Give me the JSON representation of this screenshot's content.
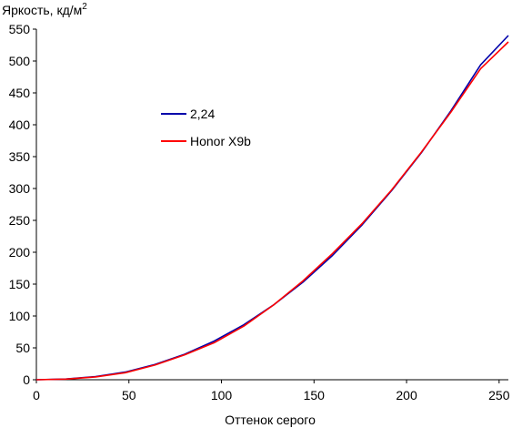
{
  "chart_data": {
    "type": "line",
    "ylabel": "Яркость, кд/м",
    "ylabel_sup": "2",
    "xlabel": "Оттенок серого",
    "xlim": [
      0,
      255
    ],
    "ylim": [
      0,
      550
    ],
    "xticks": [
      0,
      50,
      100,
      150,
      200,
      250
    ],
    "yticks": [
      0,
      50,
      100,
      150,
      200,
      250,
      300,
      350,
      400,
      450,
      500,
      550
    ],
    "grid": false,
    "legend_position": "upper-left",
    "series": [
      {
        "name": "2,24",
        "color": "#0000aa",
        "x": [
          0,
          16,
          32,
          48,
          64,
          80,
          96,
          112,
          128,
          144,
          160,
          176,
          192,
          208,
          224,
          240,
          255
        ],
        "y": [
          0,
          1.1,
          5,
          12,
          23.8,
          39.8,
          60.5,
          86.2,
          117,
          153,
          195,
          243,
          297,
          356,
          422,
          494,
          540
        ]
      },
      {
        "name": "Honor X9b",
        "color": "#ff0000",
        "x": [
          0,
          16,
          32,
          48,
          64,
          80,
          96,
          112,
          128,
          144,
          160,
          176,
          192,
          208,
          224,
          240,
          255
        ],
        "y": [
          0,
          1,
          4.5,
          11,
          23,
          39,
          58,
          84,
          117,
          155,
          198,
          245,
          298,
          357,
          420,
          488,
          530
        ]
      }
    ]
  }
}
